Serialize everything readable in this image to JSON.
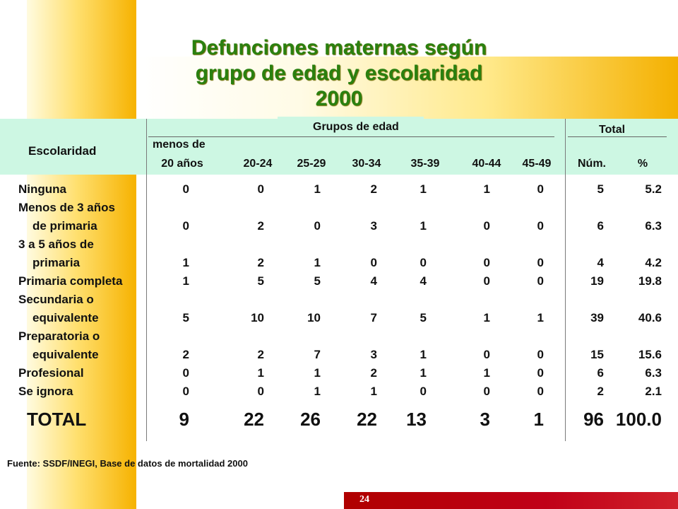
{
  "title": {
    "line1": "Defunciones maternas según",
    "line2": "grupo de edad y escolaridad",
    "line3": "2000"
  },
  "header": {
    "escolaridad": "Escolaridad",
    "grupos": "Grupos de edad",
    "total": "Total",
    "menos_de": "menos de",
    "columns": [
      "20 años",
      "20-24",
      "25-29",
      "30-34",
      "35-39",
      "40-44",
      "45-49",
      "Núm.",
      "%"
    ]
  },
  "rows": [
    {
      "label": [
        "Ninguna"
      ],
      "values": [
        "0",
        "0",
        "1",
        "2",
        "1",
        "1",
        "0",
        "5",
        "5.2"
      ]
    },
    {
      "label": [
        "Menos de 3 años",
        "de primaria"
      ],
      "values": [
        "0",
        "2",
        "0",
        "3",
        "1",
        "0",
        "0",
        "6",
        "6.3"
      ]
    },
    {
      "label": [
        "3 a 5 años de",
        "primaria"
      ],
      "values": [
        "1",
        "2",
        "1",
        "0",
        "0",
        "0",
        "0",
        "4",
        "4.2"
      ]
    },
    {
      "label": [
        "Primaria completa"
      ],
      "values": [
        "1",
        "5",
        "5",
        "4",
        "4",
        "0",
        "0",
        "19",
        "19.8"
      ]
    },
    {
      "label": [
        "Secundaria o",
        "equivalente"
      ],
      "values": [
        "5",
        "10",
        "10",
        "7",
        "5",
        "1",
        "1",
        "39",
        "40.6"
      ]
    },
    {
      "label": [
        "Preparatoria o",
        "equivalente"
      ],
      "values": [
        "2",
        "2",
        "7",
        "3",
        "1",
        "0",
        "0",
        "15",
        "15.6"
      ]
    },
    {
      "label": [
        "Profesional"
      ],
      "values": [
        "0",
        "1",
        "1",
        "2",
        "1",
        "1",
        "0",
        "6",
        "6.3"
      ]
    },
    {
      "label": [
        "Se ignora"
      ],
      "values": [
        "0",
        "0",
        "1",
        "1",
        "0",
        "0",
        "0",
        "2",
        "2.1"
      ]
    }
  ],
  "total_row": {
    "label": "TOTAL",
    "values": [
      "9",
      "22",
      "26",
      "22",
      "13",
      "3",
      "1",
      "96",
      "100.0"
    ]
  },
  "source": "Fuente: SSDF/INEGI, Base de datos de mortalidad 2000",
  "page_number": "24",
  "colors": {
    "title": "#2a8010",
    "header_bg": "#cdf7e3",
    "accent": "#f6b200",
    "footer": "#b00000"
  }
}
